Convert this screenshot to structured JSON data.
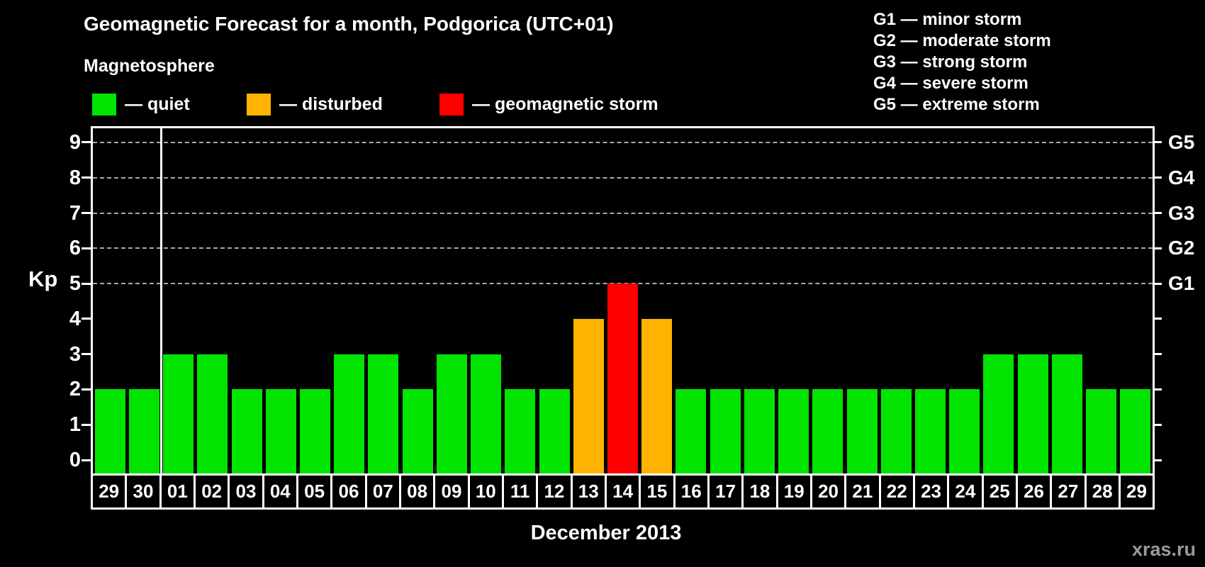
{
  "header": {
    "title": "Geomagnetic Forecast for a month, Podgorica (UTC+01)",
    "subtitle": "Magnetosphere"
  },
  "legend": {
    "items": [
      {
        "name": "quiet",
        "label": "— quiet",
        "color": "#00e400"
      },
      {
        "name": "disturbed",
        "label": "— disturbed",
        "color": "#ffb300"
      },
      {
        "name": "storm",
        "label": "— geomagnetic storm",
        "color": "#ff0000"
      }
    ]
  },
  "g_scale_legend": {
    "items": [
      "G1 — minor storm",
      "G2 — moderate storm",
      "G3 — strong storm",
      "G4 — severe storm",
      "G5 — extreme storm"
    ]
  },
  "footer": {
    "watermark": "xras.ru"
  },
  "chart_data": {
    "type": "bar",
    "title": "Geomagnetic Forecast for a month, Podgorica (UTC+01)",
    "subtitle": "Magnetosphere",
    "xlabel": "December 2013",
    "ylabel": "Kp",
    "ylim": [
      0,
      9
    ],
    "y_ticks": [
      0,
      1,
      2,
      3,
      4,
      5,
      6,
      7,
      8,
      9
    ],
    "gridlines_at_kp": [
      5,
      6,
      7,
      8,
      9
    ],
    "grid": "horizontal dashed lines at storm levels Kp 5-9",
    "legend_position": "top-left",
    "right_axis_labels": [
      {
        "kp": 5,
        "label": "G1"
      },
      {
        "kp": 6,
        "label": "G2"
      },
      {
        "kp": 7,
        "label": "G3"
      },
      {
        "kp": 8,
        "label": "G4"
      },
      {
        "kp": 9,
        "label": "G5"
      }
    ],
    "month_separator_after_index": 1,
    "categories": [
      "29",
      "30",
      "01",
      "02",
      "03",
      "04",
      "05",
      "06",
      "07",
      "08",
      "09",
      "10",
      "11",
      "12",
      "13",
      "14",
      "15",
      "16",
      "17",
      "18",
      "19",
      "20",
      "21",
      "22",
      "23",
      "24",
      "25",
      "26",
      "27",
      "28",
      "29"
    ],
    "values": [
      2,
      2,
      3,
      3,
      2,
      2,
      2,
      3,
      3,
      2,
      3,
      3,
      2,
      2,
      4,
      5,
      4,
      2,
      2,
      2,
      2,
      2,
      2,
      2,
      2,
      2,
      3,
      3,
      3,
      2,
      2
    ],
    "statuses": [
      "quiet",
      "quiet",
      "quiet",
      "quiet",
      "quiet",
      "quiet",
      "quiet",
      "quiet",
      "quiet",
      "quiet",
      "quiet",
      "quiet",
      "quiet",
      "quiet",
      "disturbed",
      "storm",
      "disturbed",
      "quiet",
      "quiet",
      "quiet",
      "quiet",
      "quiet",
      "quiet",
      "quiet",
      "quiet",
      "quiet",
      "quiet",
      "quiet",
      "quiet",
      "quiet",
      "quiet"
    ],
    "status_colors": {
      "quiet": "#00e400",
      "disturbed": "#ffb300",
      "storm": "#ff0000"
    }
  }
}
